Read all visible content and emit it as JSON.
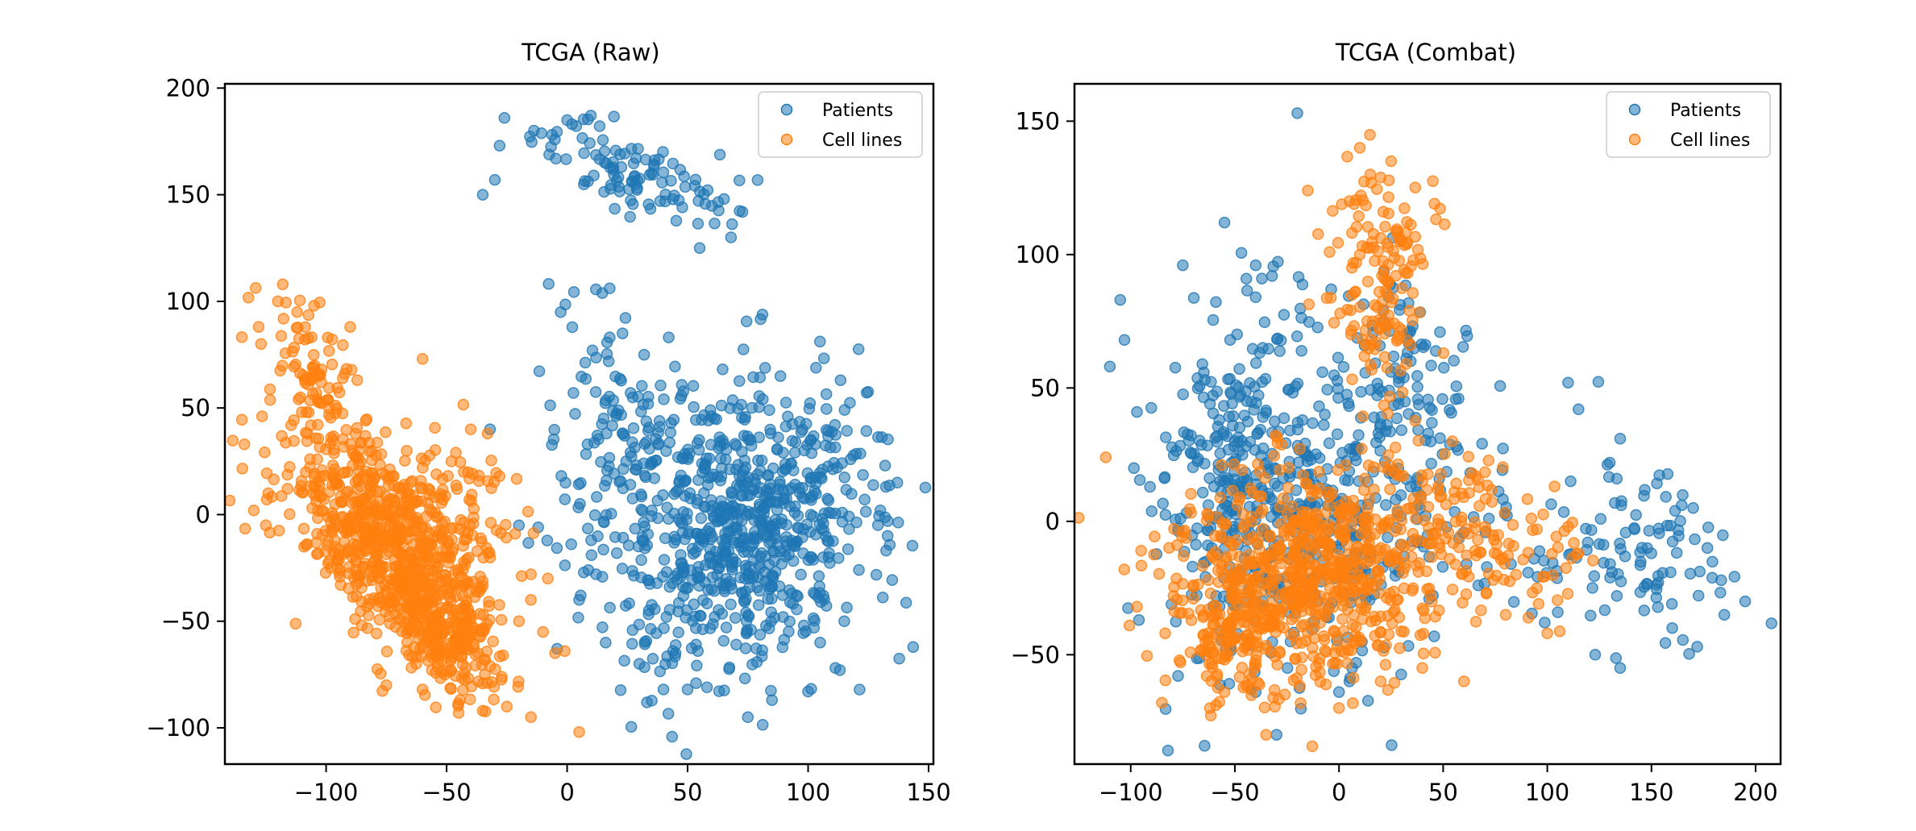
{
  "chart_data": [
    {
      "type": "scatter",
      "title": "TCGA (Raw)",
      "xlabel": "",
      "ylabel": "",
      "xlim": [
        -142,
        152
      ],
      "ylim": [
        -117,
        202
      ],
      "xticks": [
        -100,
        -50,
        0,
        50,
        100,
        150
      ],
      "yticks": [
        -100,
        -50,
        0,
        50,
        100,
        150,
        200
      ],
      "xtick_labels": [
        "−100",
        "−50",
        "0",
        "50",
        "100",
        "150"
      ],
      "ytick_labels": [
        "−100",
        "−50",
        "0",
        "50",
        "100",
        "150",
        "200"
      ],
      "grid": false,
      "legend": "top-right",
      "series": [
        {
          "name": "Patients",
          "color": "#1f77b4",
          "clusters": [
            {
              "cx": 72,
              "cy": -5,
              "sx": 28,
              "sy": 33,
              "rho": 0.1,
              "n": 780
            },
            {
              "cx": 25,
              "cy": 40,
              "sx": 14,
              "sy": 22,
              "rho": 0.1,
              "n": 80
            },
            {
              "cx": 28,
              "cy": 160,
              "sx": 20,
              "sy": 12,
              "rho": -0.5,
              "n": 110
            },
            {
              "cx": 10,
              "cy": 95,
              "sx": 8,
              "sy": 15,
              "rho": 0.0,
              "n": 14
            }
          ],
          "points": [
            [
              -26,
              186
            ],
            [
              -28,
              173
            ],
            [
              -30,
              157
            ],
            [
              -35,
              150
            ],
            [
              0,
              185
            ],
            [
              55,
              125
            ],
            [
              68,
              130
            ],
            [
              -32,
              40
            ],
            [
              -12,
              -6
            ],
            [
              -20,
              -5
            ],
            [
              10,
              -12
            ],
            [
              16,
              -60
            ],
            [
              5,
              -40
            ],
            [
              12,
              -28
            ],
            [
              30,
              -70
            ],
            [
              45,
              -65
            ],
            [
              75,
              -95
            ],
            [
              85,
              -87
            ],
            [
              100,
              -83
            ],
            [
              50,
              -82
            ],
            [
              137,
              15
            ],
            [
              130,
              2
            ],
            [
              133,
              -10
            ],
            [
              115,
              -50
            ],
            [
              105,
              -60
            ],
            [
              40,
              -82
            ]
          ]
        },
        {
          "name": "Cell lines",
          "color": "#ff7f0e",
          "clusters": [
            {
              "cx": -75,
              "cy": -10,
              "sx": 20,
              "sy": 25,
              "rho": -0.5,
              "n": 700
            },
            {
              "cx": -50,
              "cy": -55,
              "sx": 12,
              "sy": 15,
              "rho": -0.4,
              "n": 250
            },
            {
              "cx": -105,
              "cy": 65,
              "sx": 10,
              "sy": 18,
              "rho": -0.5,
              "n": 80
            },
            {
              "cx": -40,
              "cy": 5,
              "sx": 10,
              "sy": 15,
              "rho": -0.3,
              "n": 50
            }
          ],
          "points": [
            [
              -118,
              108
            ],
            [
              -128,
              88
            ],
            [
              -127,
              80
            ],
            [
              -120,
              100
            ],
            [
              -112,
              95
            ],
            [
              -105,
              98
            ],
            [
              -90,
              88
            ],
            [
              -60,
              73
            ],
            [
              -40,
              40
            ],
            [
              -33,
              38
            ],
            [
              -28,
              18
            ],
            [
              -130,
              2
            ],
            [
              -125,
              -5
            ],
            [
              -124,
              10
            ],
            [
              -15,
              -28
            ],
            [
              -15,
              -40
            ],
            [
              -20,
              -50
            ],
            [
              -10,
              -55
            ],
            [
              -5,
              -65
            ],
            [
              -1,
              -64
            ],
            [
              -8,
              -30
            ],
            [
              5,
              -102
            ],
            [
              -15,
              -95
            ],
            [
              -25,
              -90
            ],
            [
              -35,
              -92
            ],
            [
              -45,
              -93
            ],
            [
              -60,
              -82
            ],
            [
              -75,
              -80
            ]
          ]
        }
      ]
    },
    {
      "type": "scatter",
      "title": "TCGA (Combat)",
      "xlabel": "",
      "ylabel": "",
      "xlim": [
        -127,
        212
      ],
      "ylim": [
        -91,
        164
      ],
      "xticks": [
        -100,
        -50,
        0,
        50,
        100,
        150,
        200
      ],
      "yticks": [
        -50,
        0,
        50,
        100,
        150
      ],
      "xtick_labels": [
        "−100",
        "−50",
        "0",
        "50",
        "100",
        "150",
        "200"
      ],
      "ytick_labels": [
        "−50",
        "0",
        "50",
        "100",
        "150"
      ],
      "grid": false,
      "legend": "top-right",
      "series": [
        {
          "name": "Patients",
          "color": "#1f77b4",
          "clusters": [
            {
              "cx": -15,
              "cy": 0,
              "sx": 35,
              "sy": 30,
              "rho": 0.2,
              "n": 420
            },
            {
              "cx": -50,
              "cy": 30,
              "sx": 18,
              "sy": 18,
              "rho": 0.0,
              "n": 140
            },
            {
              "cx": 30,
              "cy": 55,
              "sx": 15,
              "sy": 20,
              "rho": 0.0,
              "n": 90
            },
            {
              "cx": 150,
              "cy": -10,
              "sx": 18,
              "sy": 15,
              "rho": -0.3,
              "n": 70
            },
            {
              "cx": 100,
              "cy": -10,
              "sx": 30,
              "sy": 18,
              "rho": 0.0,
              "n": 55
            },
            {
              "cx": -40,
              "cy": 80,
              "sx": 15,
              "sy": 10,
              "rho": 0.0,
              "n": 25
            }
          ],
          "points": [
            [
              -20,
              153
            ],
            [
              -105,
              83
            ],
            [
              -110,
              58
            ],
            [
              -103,
              68
            ],
            [
              -97,
              41
            ],
            [
              -75,
              96
            ],
            [
              -55,
              112
            ],
            [
              -40,
              96
            ],
            [
              -40,
              84
            ],
            [
              110,
              52
            ],
            [
              115,
              42
            ],
            [
              135,
              31
            ],
            [
              130,
              22
            ],
            [
              170,
              5
            ],
            [
              195,
              -30
            ],
            [
              185,
              -35
            ],
            [
              160,
              -40
            ],
            [
              172,
              -47
            ],
            [
              123,
              -50
            ],
            [
              135,
              -55
            ],
            [
              -30,
              -80
            ],
            [
              -40,
              -64
            ],
            [
              0,
              -64
            ],
            [
              5,
              -60
            ]
          ]
        },
        {
          "name": "Cell lines",
          "color": "#ff7f0e",
          "clusters": [
            {
              "cx": -15,
              "cy": -20,
              "sx": 30,
              "sy": 20,
              "rho": 0.0,
              "n": 720
            },
            {
              "cx": 20,
              "cy": 90,
              "sx": 12,
              "sy": 22,
              "rho": 0.0,
              "n": 150
            },
            {
              "cx": 60,
              "cy": -5,
              "sx": 25,
              "sy": 15,
              "rho": -0.3,
              "n": 130
            },
            {
              "cx": -50,
              "cy": -45,
              "sx": 15,
              "sy": 12,
              "rho": 0.0,
              "n": 90
            }
          ],
          "points": [
            [
              -112,
              24
            ],
            [
              -95,
              -11
            ],
            [
              -97,
              -32
            ],
            [
              -85,
              -68
            ],
            [
              -62,
              -70
            ],
            [
              -55,
              -64
            ],
            [
              -35,
              -80
            ],
            [
              15,
              130
            ],
            [
              10,
              140
            ],
            [
              25,
              135
            ],
            [
              -15,
              124
            ],
            [
              5,
              120
            ],
            [
              95,
              -3
            ],
            [
              110,
              -2
            ],
            [
              115,
              -12
            ],
            [
              85,
              -20
            ],
            [
              80,
              -35
            ],
            [
              100,
              -42
            ],
            [
              60,
              -60
            ],
            [
              40,
              -55
            ],
            [
              0,
              -70
            ],
            [
              20,
              -60
            ]
          ]
        }
      ]
    }
  ]
}
